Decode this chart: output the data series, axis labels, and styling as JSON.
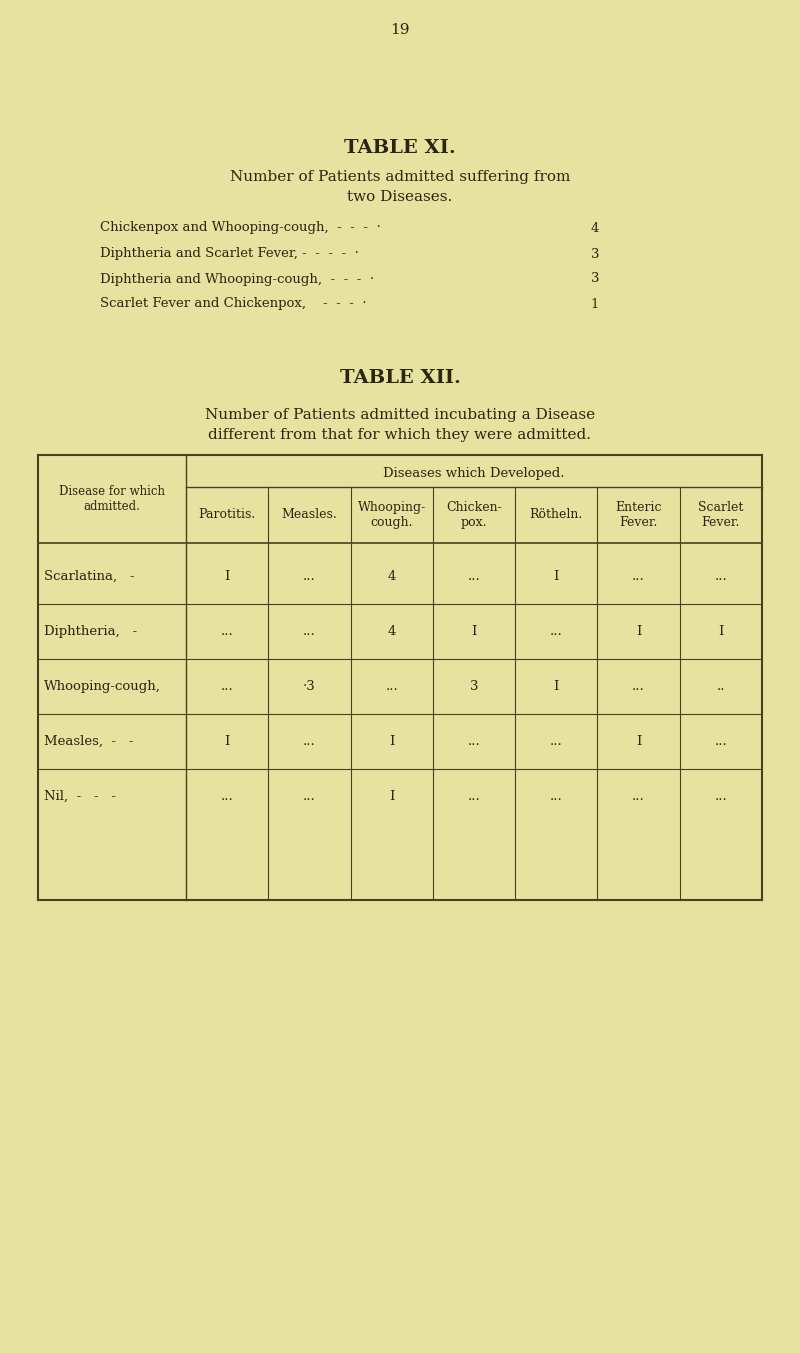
{
  "bg_color": "#e8e2a0",
  "page_number": "19",
  "table_xi_title": "TABLE XI.",
  "table_xi_subtitle_line1": "Number of Patients admitted suffering from",
  "table_xi_subtitle_line2": "two Diseases.",
  "table_xi_rows": [
    [
      "Chickenpox and Whooping-cough,  -  -  -  ·",
      "4"
    ],
    [
      "Diphtheria and Scarlet Fever, -  -  -  -  ·",
      "3"
    ],
    [
      "Diphtheria and Whooping-cough,  -  -  -  ·",
      "3"
    ],
    [
      "Scarlet Fever and Chickenpox,    -  -  -  ·",
      "1"
    ]
  ],
  "table_xii_title": "TABLE XII.",
  "table_xii_subtitle_line1": "Number of Patients admitted incubating a Disease",
  "table_xii_subtitle_line2": "different from that for which they were admitted.",
  "col_header_top": "Diseases which Developed.",
  "col_header_left": "Disease for which\nadmitted.",
  "col_headers": [
    "Parotitis.",
    "Measles.",
    "Whooping-\ncough.",
    "Chicken-\npox.",
    "Rötheln.",
    "Enteric\nFever.",
    "Scarlet\nFever."
  ],
  "row_labels": [
    "Scarlatina,   -",
    "Diphtheria,   -",
    "Whooping-cough,",
    "Measles,  -   -",
    "Nil,  -   -   -"
  ],
  "table_data": [
    [
      "I",
      "...",
      "4",
      "...",
      "I",
      "...",
      "..."
    ],
    [
      "...",
      "...",
      "4",
      "I",
      "...",
      "I",
      "I"
    ],
    [
      "...",
      "·3",
      "...",
      "3",
      "I",
      "...",
      ".."
    ],
    [
      "I",
      "...",
      "I",
      "...",
      "...",
      "I",
      "..."
    ],
    [
      "...",
      "...",
      "I",
      "...",
      "...",
      "...",
      "..."
    ]
  ],
  "text_color": "#2a2510",
  "table_border_color": "#4a4020",
  "font_size_page": 11,
  "font_size_title": 14,
  "font_size_subtitle": 11,
  "font_size_body": 9.5,
  "font_size_table_header": 9,
  "font_size_table_data": 9.5
}
